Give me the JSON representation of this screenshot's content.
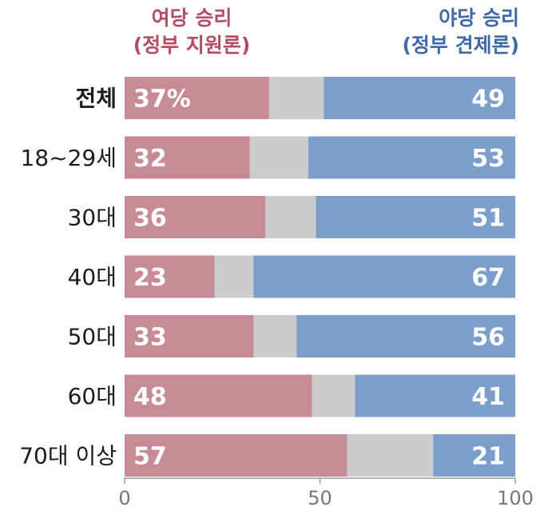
{
  "legend": {
    "ruling_line1": "여당 승리",
    "ruling_line2": "(정부 지원론)",
    "opposition_line1": "야당 승리",
    "opposition_line2": "(정부 견제론)"
  },
  "colors": {
    "ruling": "#c98a97",
    "neutral": "#cccccc",
    "opposition": "#7b9ecb",
    "ruling_text": "#b24d62",
    "opposition_text": "#3f68a8"
  },
  "chart_data": {
    "type": "bar",
    "orientation": "horizontal",
    "stacked": true,
    "categories": [
      "전체",
      "18~29세",
      "30대",
      "40대",
      "50대",
      "60대",
      "70대 이상"
    ],
    "series": [
      {
        "name": "여당 승리 (정부 지원론)",
        "values": [
          37,
          32,
          36,
          23,
          33,
          48,
          57
        ]
      },
      {
        "values": [
          14,
          15,
          13,
          10,
          11,
          11,
          22
        ]
      },
      {
        "name": "야당 승리 (정부 견제론)",
        "values": [
          49,
          53,
          51,
          67,
          56,
          41,
          21
        ]
      }
    ],
    "value_labels_left": [
      "37%",
      "32",
      "36",
      "23",
      "33",
      "48",
      "57"
    ],
    "value_labels_right": [
      "49",
      "53",
      "51",
      "67",
      "56",
      "41",
      "21"
    ],
    "xlim": [
      0,
      100
    ],
    "xticks": [
      0,
      50,
      100
    ],
    "xtick_labels": [
      "0",
      "50",
      "100"
    ],
    "bold_category": "전체",
    "grid": false,
    "legend_placement": "top"
  }
}
